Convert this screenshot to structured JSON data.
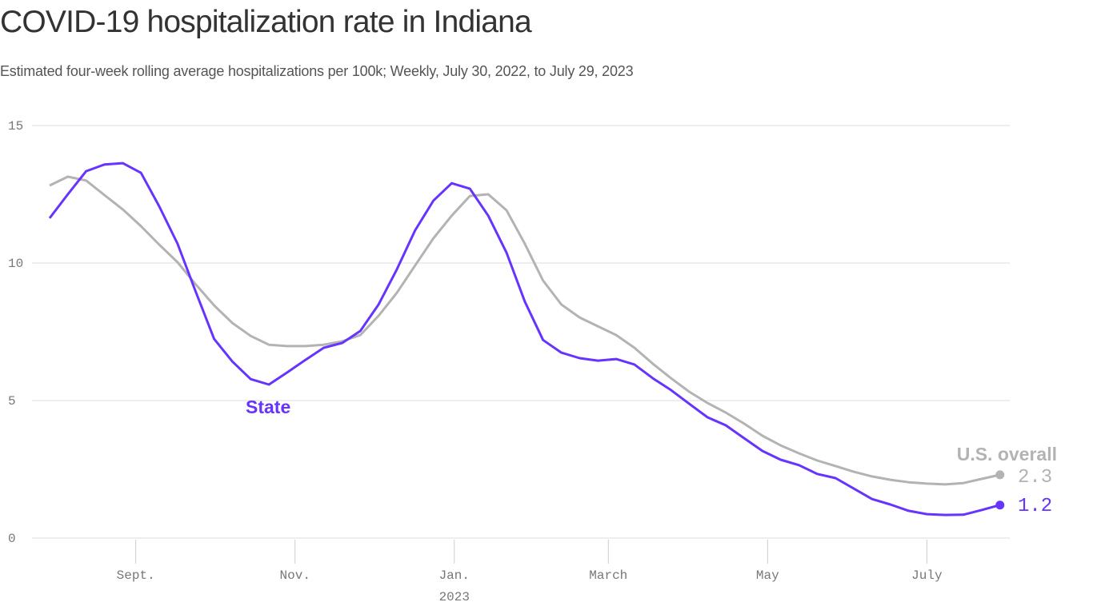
{
  "title": "COVID-19 hospitalization rate in Indiana",
  "subtitle": "Estimated four-week rolling average hospitalizations per 100k; Weekly, July 30, 2022, to July 29, 2023",
  "chart_data": {
    "type": "line",
    "title": "COVID-19 hospitalization rate in Indiana",
    "subtitle": "Estimated four-week rolling average hospitalizations per 100k; Weekly, July 30, 2022, to July 29, 2023",
    "xlabel": "",
    "ylabel": "",
    "ylim": [
      0,
      15
    ],
    "y_ticks": [
      "0",
      "5",
      "10",
      "15"
    ],
    "y_tick_values": [
      0,
      5,
      10,
      15
    ],
    "x_ticks": [
      {
        "date": "2022-09-01",
        "label": "Sept.",
        "sublabel": ""
      },
      {
        "date": "2022-11-01",
        "label": "Nov.",
        "sublabel": ""
      },
      {
        "date": "2023-01-01",
        "label": "Jan.",
        "sublabel": "2023"
      },
      {
        "date": "2023-03-01",
        "label": "March",
        "sublabel": ""
      },
      {
        "date": "2023-05-01",
        "label": "May",
        "sublabel": ""
      },
      {
        "date": "2023-07-01",
        "label": "July",
        "sublabel": ""
      }
    ],
    "grid": "horizontal",
    "x": [
      "2022-07-30",
      "2022-08-06",
      "2022-08-13",
      "2022-08-20",
      "2022-08-27",
      "2022-09-03",
      "2022-09-10",
      "2022-09-17",
      "2022-09-24",
      "2022-10-01",
      "2022-10-08",
      "2022-10-15",
      "2022-10-22",
      "2022-10-29",
      "2022-11-05",
      "2022-11-12",
      "2022-11-19",
      "2022-11-26",
      "2022-12-03",
      "2022-12-10",
      "2022-12-17",
      "2022-12-24",
      "2022-12-31",
      "2023-01-07",
      "2023-01-14",
      "2023-01-21",
      "2023-01-28",
      "2023-02-04",
      "2023-02-11",
      "2023-02-18",
      "2023-02-25",
      "2023-03-04",
      "2023-03-11",
      "2023-03-18",
      "2023-03-25",
      "2023-04-01",
      "2023-04-08",
      "2023-04-15",
      "2023-04-22",
      "2023-04-29",
      "2023-05-06",
      "2023-05-13",
      "2023-05-20",
      "2023-05-27",
      "2023-06-03",
      "2023-06-10",
      "2023-06-17",
      "2023-06-24",
      "2023-07-01",
      "2023-07-08",
      "2023-07-15",
      "2023-07-22",
      "2023-07-29"
    ],
    "series": [
      {
        "name": "U.S. overall",
        "color": "#b3b3b3",
        "end_label": "2.3",
        "values": [
          12.82,
          13.14,
          13.0,
          12.47,
          11.95,
          11.34,
          10.67,
          10.03,
          9.22,
          8.46,
          7.82,
          7.35,
          7.03,
          6.98,
          6.98,
          7.03,
          7.15,
          7.38,
          8.08,
          8.92,
          9.91,
          10.9,
          11.72,
          12.44,
          12.5,
          11.92,
          10.7,
          9.36,
          8.49,
          8.02,
          7.7,
          7.38,
          6.92,
          6.34,
          5.81,
          5.32,
          4.91,
          4.56,
          4.16,
          3.72,
          3.37,
          3.08,
          2.82,
          2.62,
          2.41,
          2.24,
          2.12,
          2.03,
          1.98,
          1.95,
          2.0,
          2.15,
          2.3
        ]
      },
      {
        "name": "State",
        "color": "#6633ff",
        "end_label": "1.2",
        "values": [
          11.63,
          12.5,
          13.34,
          13.58,
          13.63,
          13.28,
          12.06,
          10.7,
          8.95,
          7.24,
          6.42,
          5.78,
          5.58,
          6.02,
          6.48,
          6.92,
          7.09,
          7.53,
          8.49,
          9.77,
          11.19,
          12.27,
          12.9,
          12.7,
          11.72,
          10.38,
          8.6,
          7.2,
          6.74,
          6.54,
          6.45,
          6.51,
          6.31,
          5.81,
          5.38,
          4.88,
          4.39,
          4.1,
          3.63,
          3.17,
          2.85,
          2.65,
          2.33,
          2.18,
          1.8,
          1.42,
          1.22,
          0.99,
          0.87,
          0.84,
          0.85,
          1.02,
          1.2
        ]
      }
    ]
  }
}
